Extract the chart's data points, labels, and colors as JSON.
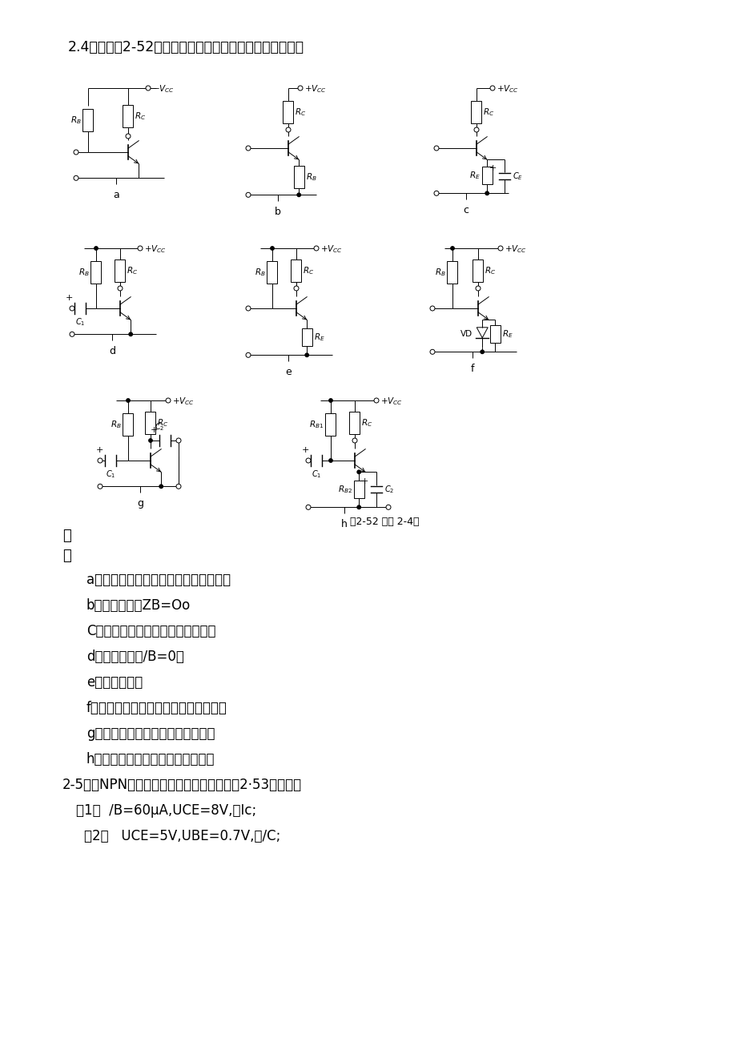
{
  "title_text": "2.4试判断图2-52中各电路有无放大作用，简单说明理由。",
  "figure_caption": "图2-52 习题 2-4图",
  "solution_header": "解",
  "colon": "：",
  "answers": [
    "a无放大作用。电源极性与三极管不符。",
    "b无放大作用。ZB=Oo",
    "C无放大作用。交流通路输入短路。",
    "d无放大作用。/B=0。",
    "e有放大作用。",
    "f无放大作用。交流通路输入半周短路。",
    "g无放大作用。交流通路输出短路。",
    "h无放大作用。交流通路输入短路。",
    "2-5已知NPN型三极管的输入，输出特性如图2·53所示，若",
    "（1）  /B=60μA,UCE=8V,求Ic;",
    "（2）   UCE=5V,UBE=0.7V,求/C;"
  ],
  "bg_color": "#ffffff",
  "text_color": "#000000",
  "line_color": "#000000",
  "page_width": 9.2,
  "page_height": 13.01,
  "dpi": 100
}
